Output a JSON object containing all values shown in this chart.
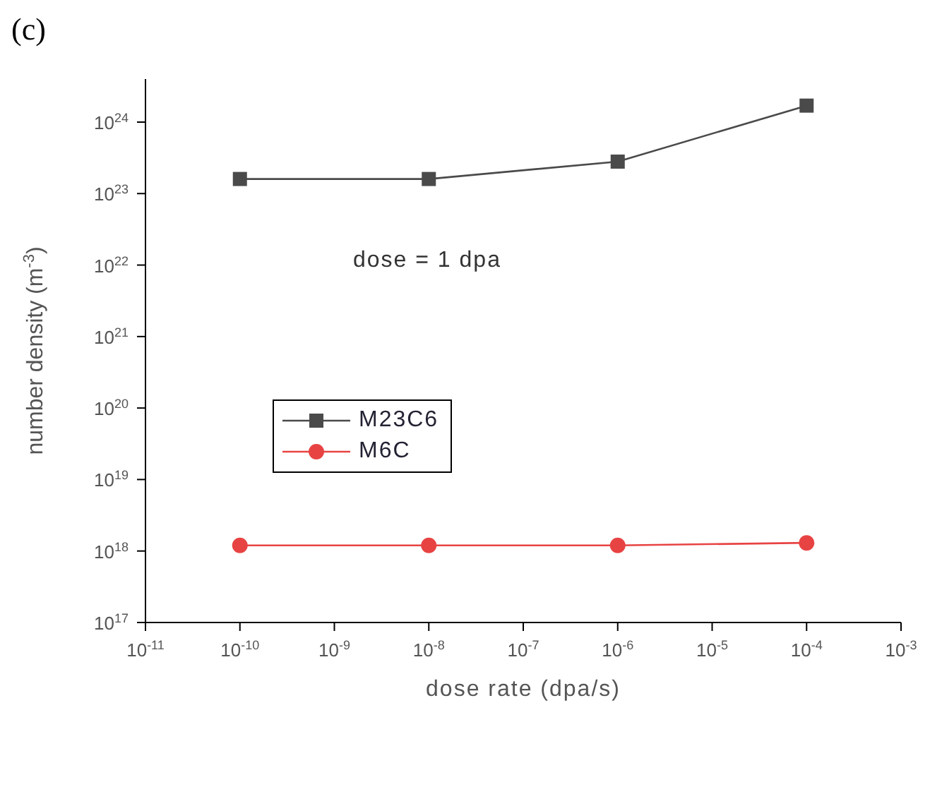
{
  "chart_data": {
    "type": "line",
    "title": "(c)",
    "xlabel": "dose rate (dpa/s)",
    "ylabel": "number density (m$^{-3}$)",
    "annotations": [
      "dose = 1 dpa"
    ],
    "x": [
      1e-10,
      1e-08,
      1e-06,
      0.0001
    ],
    "series": [
      {
        "name": "M23C6",
        "color": "#4a4a4a",
        "marker": "square",
        "values": [
          1.6e+23,
          1.6e+23,
          2.8e+23,
          1.7e+24
        ]
      },
      {
        "name": "M6C",
        "color": "#e84343",
        "marker": "circle",
        "values": [
          1.2e+18,
          1.2e+18,
          1.2e+18,
          1.3e+18
        ]
      }
    ],
    "log": "xy",
    "xlim": [
      1e-11,
      0.001
    ],
    "ylim": [
      1e+17,
      4e+24
    ],
    "xticks": [
      {
        "value": 1e-11,
        "label": "10$^{-11}$"
      },
      {
        "value": 1e-10,
        "label": "10$^{-10}$"
      },
      {
        "value": 1e-09,
        "label": "10$^{-9}$"
      },
      {
        "value": 1e-08,
        "label": "10$^{-8}$"
      },
      {
        "value": 1e-07,
        "label": "10$^{-7}$"
      },
      {
        "value": 1e-06,
        "label": "10$^{-6}$"
      },
      {
        "value": 1e-05,
        "label": "10$^{-5}$"
      },
      {
        "value": 0.0001,
        "label": "10$^{-4}$"
      },
      {
        "value": 0.001,
        "label": "10$^{-3}$"
      }
    ],
    "yticks": [
      {
        "value": 1e+17,
        "label": "10$^{17}$"
      },
      {
        "value": 1e+18,
        "label": "10$^{18}$"
      },
      {
        "value": 1e+19,
        "label": "10$^{19}$"
      },
      {
        "value": 1e+20,
        "label": "10$^{20}$"
      },
      {
        "value": 1e+21,
        "label": "10$^{21}$"
      },
      {
        "value": 1e+22,
        "label": "10$^{22}$"
      },
      {
        "value": 1e+23,
        "label": "10$^{23}$"
      },
      {
        "value": 1e+24,
        "label": "10$^{24}$"
      }
    ],
    "grid": false,
    "legend": "center left",
    "line_style": "solid"
  }
}
